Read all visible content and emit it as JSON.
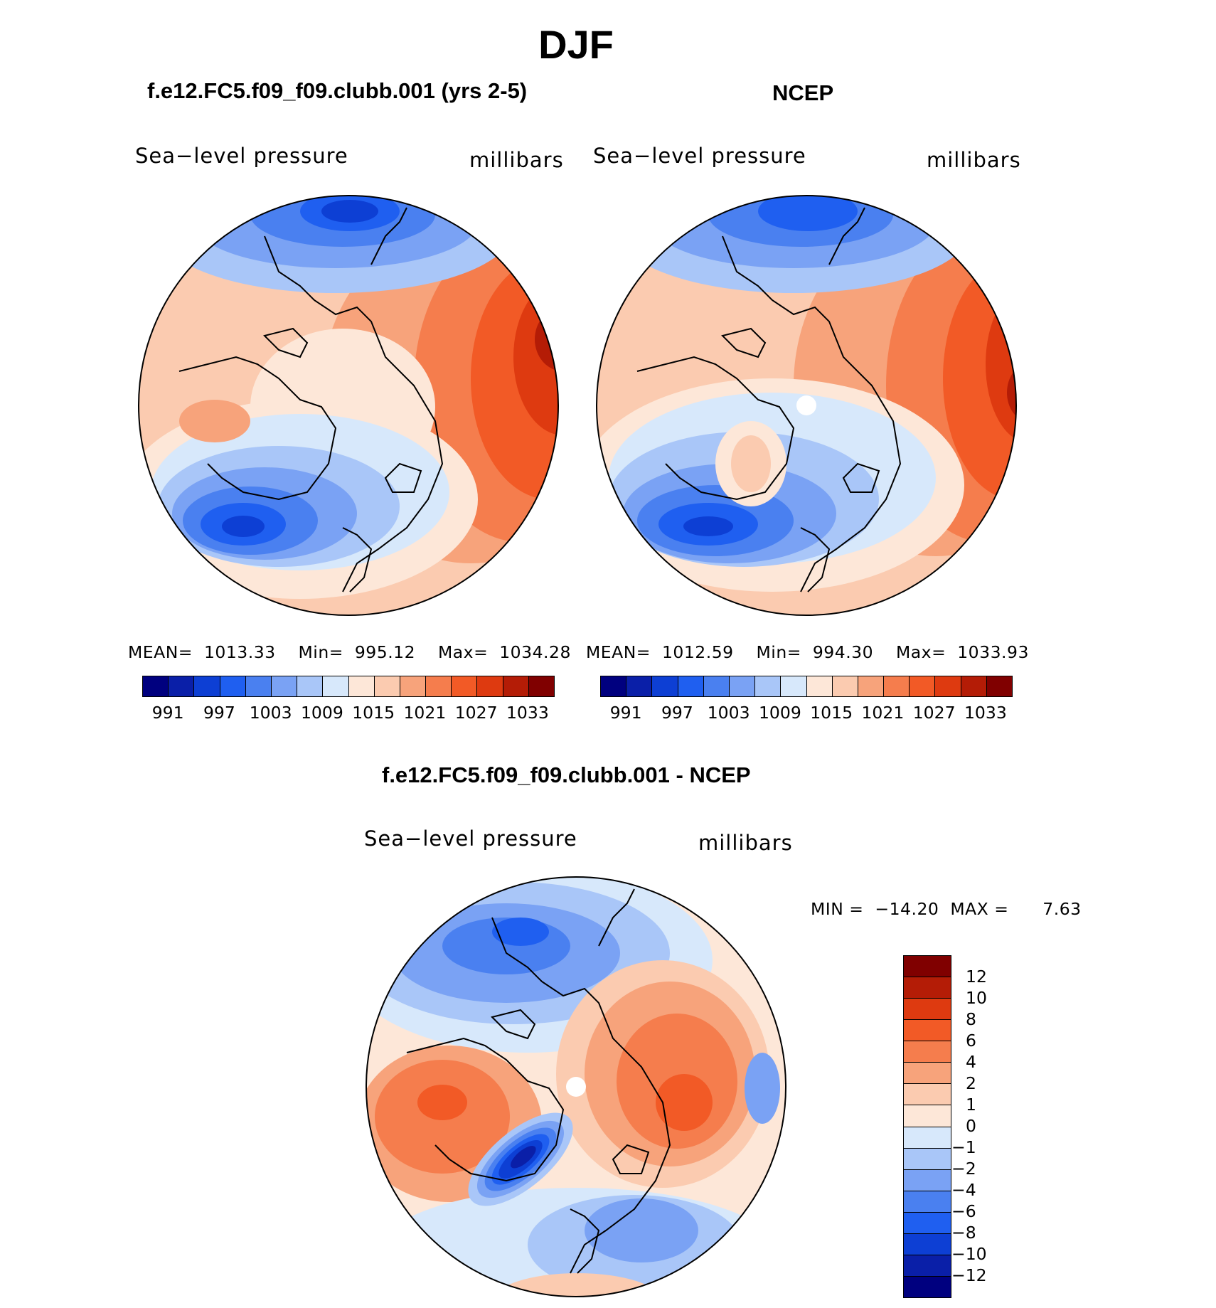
{
  "title": "DJF",
  "panels": {
    "model": {
      "title": "f.e12.FC5.f09_f09.clubb.001 (yrs 2-5)",
      "variable": "Sea−level pressure",
      "units": "millibars",
      "mean_label": "MEAN=",
      "mean": "1013.33",
      "min_label": "Min=",
      "min": "995.12",
      "max_label": "Max=",
      "max": "1034.28"
    },
    "obs": {
      "title": "NCEP",
      "variable": "Sea−level pressure",
      "units": "millibars",
      "mean_label": "MEAN=",
      "mean": "1012.59",
      "min_label": "Min=",
      "min": "994.30",
      "max_label": "Max=",
      "max": "1033.93"
    },
    "diff": {
      "title": "f.e12.FC5.f09_f09.clubb.001 - NCEP",
      "variable": "Sea−level pressure",
      "units": "millibars",
      "min_label": "MIN =",
      "min": "−14.20",
      "max_label": "MAX =",
      "max": "7.63"
    }
  },
  "abs_colorbar": {
    "colors": [
      "#00007f",
      "#0a1fa8",
      "#0d3fd4",
      "#1f5ff0",
      "#4a80f0",
      "#7aa2f4",
      "#a9c6f8",
      "#d7e8fb",
      "#fde7d8",
      "#fbcbb0",
      "#f7a37b",
      "#f57d4d",
      "#f25a26",
      "#de3a10",
      "#b41c06",
      "#800000"
    ],
    "ticks": [
      "991",
      "997",
      "1003",
      "1009",
      "1015",
      "1021",
      "1027",
      "1033"
    ]
  },
  "diff_colorbar": {
    "colors_top_to_bottom": [
      "#800000",
      "#b41c06",
      "#de3a10",
      "#f25a26",
      "#f57d4d",
      "#f7a37b",
      "#fbcbb0",
      "#fde7d8",
      "#d7e8fb",
      "#a9c6f8",
      "#7aa2f4",
      "#4a80f0",
      "#1f5ff0",
      "#0d3fd4",
      "#0a1fa8",
      "#00007f"
    ],
    "ticks": [
      "12",
      "10",
      "8",
      "6",
      "4",
      "2",
      "1",
      "0",
      "−1",
      "−2",
      "−4",
      "−6",
      "−8",
      "−10",
      "−12"
    ]
  }
}
